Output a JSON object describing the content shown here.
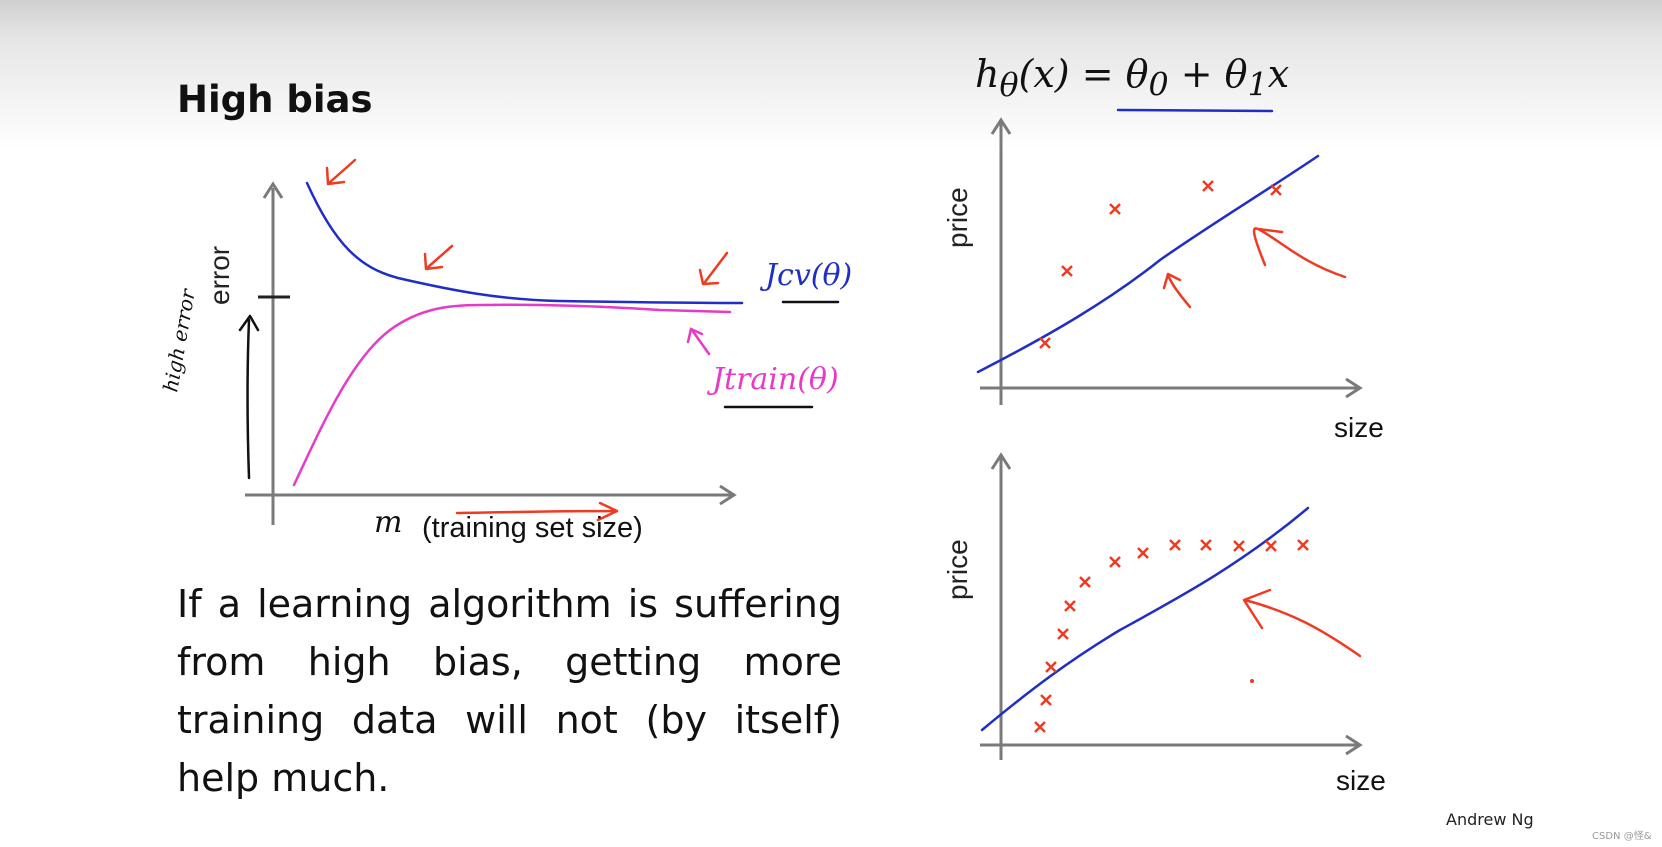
{
  "slide": {
    "title": "High bias",
    "paragraph_lines": [
      "If a learning algorithm is suffering",
      "from high bias, getting more",
      "training data will not (by itself)",
      "help much."
    ],
    "author": "Andrew Ng",
    "watermark": "CSDN @怪&"
  },
  "learning_curve": {
    "ylabel": "error",
    "xlabel_math": "m",
    "xlabel_text": "(training set size)",
    "cv_label": "Jcv(θ)",
    "train_label": "Jtrain(θ)",
    "annotation": "high error"
  },
  "hypothesis": {
    "formula_html": "h<sub>θ</sub>(x) = θ<sub>0</sub> + θ<sub>1</sub>x"
  },
  "plots": [
    {
      "ylabel": "price",
      "xlabel": "size"
    },
    {
      "ylabel": "price",
      "xlabel": "size"
    }
  ],
  "colors": {
    "cv_curve": "#1f2fc4",
    "train_curve": "#e83ac8",
    "annotation_red": "#ee3b22",
    "axis": "#7a7a7a"
  }
}
